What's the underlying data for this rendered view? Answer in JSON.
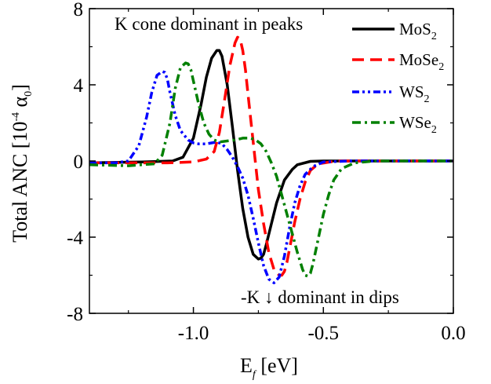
{
  "chart_data": {
    "type": "line",
    "xlabel_main": "E",
    "xlabel_sub": "f",
    "xlabel_unit": " [eV]",
    "ylabel_main": "Total ANC [10",
    "ylabel_sup": "-4",
    "ylabel_unit": " α",
    "ylabel_sub": "0",
    "ylabel_close": "]",
    "xlim": [
      -1.4,
      0.0
    ],
    "ylim": [
      -8,
      8
    ],
    "x_ticks": [
      -1.0,
      -0.5,
      0.0
    ],
    "x_tick_labels": [
      "-1.0",
      "-0.5",
      "0.0"
    ],
    "y_ticks": [
      8,
      4,
      0,
      -4,
      -8
    ],
    "y_tick_labels": [
      "8",
      "4",
      "0",
      "-4",
      "-8"
    ],
    "annotations": {
      "top": "K cone dominant in peaks",
      "bottom": "-K ↓ dominant in dips"
    },
    "legend_position": "top-right",
    "series": [
      {
        "name_main": "MoS",
        "name_sub": "2",
        "color": "#000000",
        "dash": "solid",
        "x": [
          -1.4,
          -1.2,
          -1.08,
          -1.04,
          -1.0,
          -0.97,
          -0.95,
          -0.93,
          -0.91,
          -0.9,
          -0.89,
          -0.87,
          -0.85,
          -0.83,
          -0.81,
          -0.79,
          -0.77,
          -0.75,
          -0.74,
          -0.73,
          -0.72,
          -0.7,
          -0.68,
          -0.65,
          -0.62,
          -0.6,
          -0.55,
          -0.5,
          -0.3,
          0.0
        ],
        "y": [
          -0.1,
          -0.05,
          0.0,
          0.2,
          1.2,
          3.0,
          4.4,
          5.4,
          5.8,
          5.8,
          5.5,
          4.0,
          1.8,
          -0.5,
          -2.5,
          -4.0,
          -4.9,
          -5.15,
          -5.1,
          -4.9,
          -4.4,
          -3.3,
          -2.2,
          -1.0,
          -0.45,
          -0.2,
          -0.02,
          0.0,
          0.0,
          0.0
        ]
      },
      {
        "name_main": "MoSe",
        "name_sub": "2",
        "color": "#ff0000",
        "dash": "long",
        "x": [
          -1.4,
          -1.1,
          -1.0,
          -0.95,
          -0.92,
          -0.9,
          -0.88,
          -0.86,
          -0.84,
          -0.83,
          -0.82,
          -0.81,
          -0.8,
          -0.79,
          -0.77,
          -0.75,
          -0.73,
          -0.71,
          -0.69,
          -0.67,
          -0.66,
          -0.65,
          -0.64,
          -0.63,
          -0.61,
          -0.59,
          -0.57,
          -0.55,
          -0.52,
          -0.45,
          -0.3,
          0.0
        ],
        "y": [
          -0.1,
          -0.1,
          -0.05,
          0.1,
          0.5,
          1.5,
          3.2,
          5.0,
          6.2,
          6.5,
          6.4,
          5.8,
          4.8,
          3.5,
          1.0,
          -1.5,
          -3.3,
          -4.8,
          -5.7,
          -6.0,
          -6.0,
          -5.8,
          -5.3,
          -4.6,
          -3.2,
          -2.0,
          -1.1,
          -0.5,
          -0.15,
          0.0,
          0.0,
          0.0
        ]
      },
      {
        "name_main": "WS",
        "name_sub": "2",
        "color": "#0000ff",
        "dash": "dash-dot-dot",
        "x": [
          -1.4,
          -1.3,
          -1.25,
          -1.21,
          -1.18,
          -1.16,
          -1.14,
          -1.12,
          -1.11,
          -1.1,
          -1.09,
          -1.07,
          -1.05,
          -1.02,
          -1.0,
          -0.98,
          -0.95,
          -0.93,
          -0.91,
          -0.89,
          -0.87,
          -0.85,
          -0.83,
          -0.81,
          -0.79,
          -0.77,
          -0.75,
          -0.73,
          -0.71,
          -0.69,
          -0.67,
          -0.65,
          -0.63,
          -0.61,
          -0.59,
          -0.57,
          -0.54,
          -0.5,
          -0.4,
          0.0
        ],
        "y": [
          -0.1,
          -0.1,
          0.0,
          0.8,
          2.3,
          3.6,
          4.5,
          4.7,
          4.65,
          4.3,
          3.6,
          2.4,
          1.6,
          1.1,
          0.95,
          0.9,
          0.9,
          0.95,
          1.0,
          0.9,
          0.6,
          0.2,
          -0.3,
          -0.9,
          -1.8,
          -3.0,
          -4.3,
          -5.5,
          -6.2,
          -6.4,
          -6.1,
          -5.0,
          -3.5,
          -2.2,
          -1.3,
          -0.7,
          -0.3,
          -0.05,
          0.0,
          0.0
        ]
      },
      {
        "name_main": "WSe",
        "name_sub": "2",
        "color": "#008000",
        "dash": "dash-dot",
        "x": [
          -1.4,
          -1.25,
          -1.15,
          -1.12,
          -1.09,
          -1.07,
          -1.05,
          -1.03,
          -1.02,
          -1.01,
          -1.0,
          -0.98,
          -0.96,
          -0.94,
          -0.92,
          -0.9,
          -0.87,
          -0.84,
          -0.81,
          -0.78,
          -0.76,
          -0.74,
          -0.72,
          -0.7,
          -0.68,
          -0.66,
          -0.64,
          -0.62,
          -0.6,
          -0.58,
          -0.57,
          -0.56,
          -0.55,
          -0.54,
          -0.52,
          -0.5,
          -0.48,
          -0.46,
          -0.43,
          -0.38,
          -0.3,
          0.0
        ],
        "y": [
          -0.2,
          -0.25,
          -0.15,
          0.3,
          2.0,
          3.8,
          4.9,
          5.15,
          5.1,
          4.8,
          4.2,
          3.0,
          2.0,
          1.4,
          1.1,
          1.0,
          1.05,
          1.1,
          1.2,
          1.2,
          1.1,
          0.9,
          0.5,
          -0.1,
          -0.8,
          -1.8,
          -2.8,
          -3.8,
          -4.8,
          -5.7,
          -6.0,
          -6.05,
          -5.9,
          -5.4,
          -4.1,
          -2.8,
          -1.8,
          -1.0,
          -0.4,
          -0.1,
          0.0,
          0.0
        ]
      }
    ]
  }
}
